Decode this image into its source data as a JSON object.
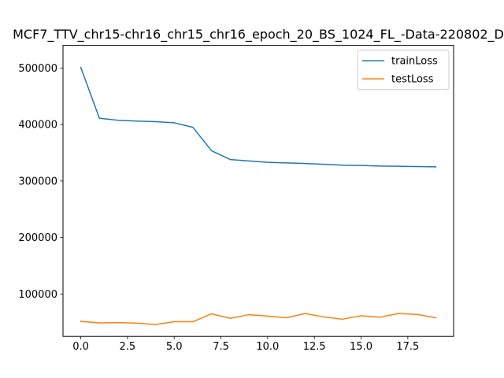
{
  "chart_data": {
    "type": "line",
    "title": "MCF7_TTV_chr15-chr16_chr15_chr16_epoch_20_BS_1024_FL_-Data-220802_D",
    "xlabel": "",
    "ylabel": "",
    "x": [
      0,
      1,
      2,
      3,
      4,
      5,
      6,
      7,
      8,
      9,
      10,
      11,
      12,
      13,
      14,
      15,
      16,
      17,
      18,
      19
    ],
    "xlim": [
      -0.95,
      19.95
    ],
    "ylim": [
      25000,
      540000
    ],
    "xticks": [
      0.0,
      2.5,
      5.0,
      7.5,
      10.0,
      12.5,
      15.0,
      17.5
    ],
    "xtick_labels": [
      "0.0",
      "2.5",
      "5.0",
      "7.5",
      "10.0",
      "12.5",
      "15.0",
      "17.5"
    ],
    "yticks": [
      100000,
      200000,
      300000,
      400000,
      500000
    ],
    "ytick_labels": [
      "100000",
      "200000",
      "300000",
      "400000",
      "500000"
    ],
    "grid": false,
    "legend_position": "upper right",
    "series": [
      {
        "name": "trainLoss",
        "color": "#1f77b4",
        "values": [
          501000,
          411000,
          407500,
          406000,
          405000,
          403000,
          395000,
          353500,
          338000,
          335500,
          333000,
          332000,
          331000,
          329500,
          328000,
          327500,
          326500,
          326000,
          325500,
          325000
        ]
      },
      {
        "name": "testLoss",
        "color": "#ff7f0e",
        "values": [
          51500,
          49000,
          49500,
          48500,
          46000,
          51000,
          51000,
          65000,
          57000,
          63500,
          61000,
          58000,
          65500,
          59500,
          55500,
          61500,
          59000,
          65500,
          64000,
          58000
        ]
      }
    ]
  }
}
